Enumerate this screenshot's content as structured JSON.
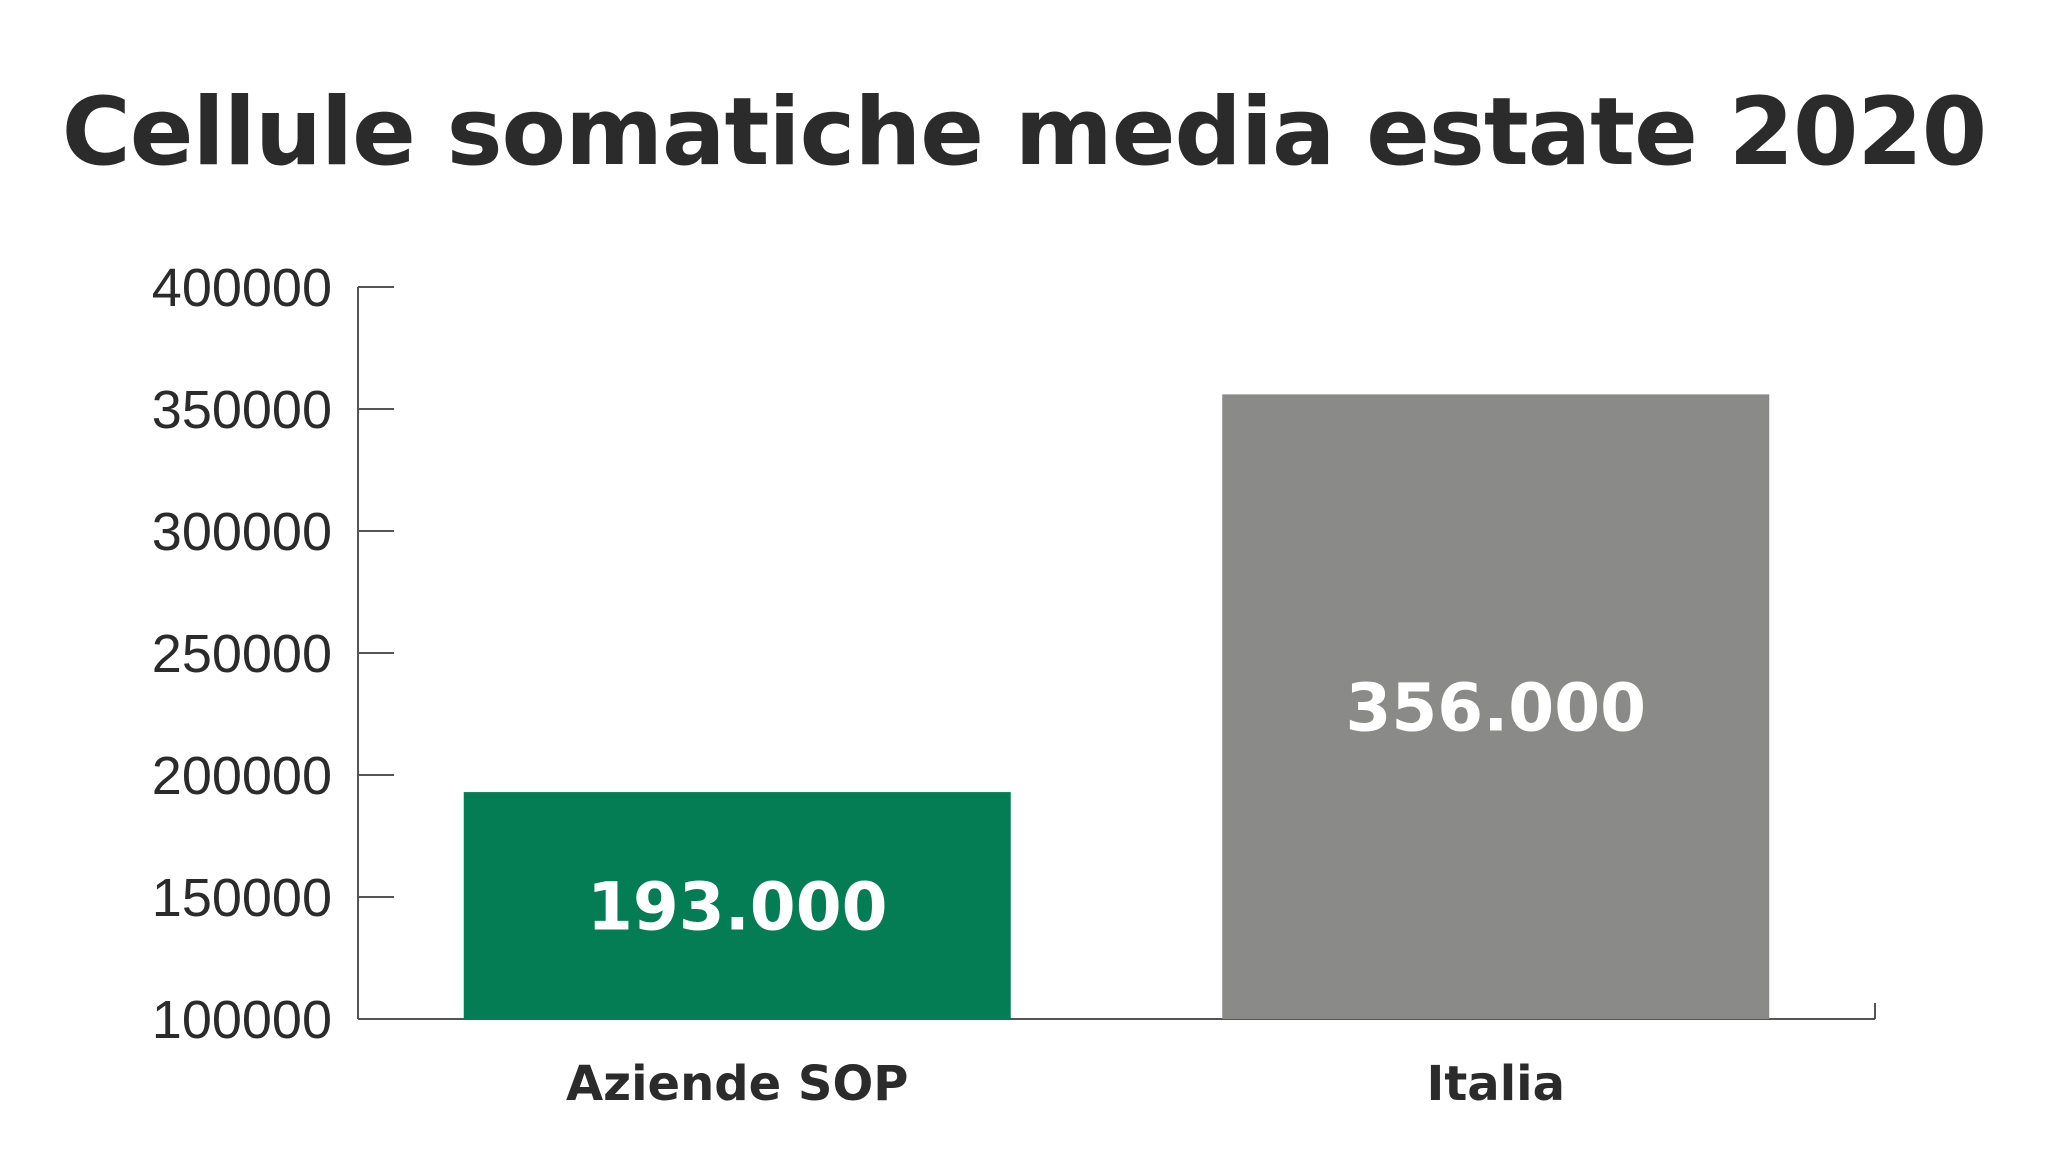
{
  "chart_data": {
    "type": "bar",
    "title": "Cellule somatiche media estate 2020",
    "xlabel": "",
    "ylabel": "",
    "categories": [
      "Aziende SOP",
      "Italia"
    ],
    "values": [
      193000,
      356000
    ],
    "data_labels": [
      "193.000",
      "356.000"
    ],
    "colors": [
      "#047d55",
      "#8a8a88"
    ],
    "ylim": [
      100000,
      400000
    ],
    "yticks": [
      100000,
      150000,
      200000,
      250000,
      300000,
      350000,
      400000
    ],
    "ytick_labels": [
      "100000",
      "150000",
      "200000",
      "250000",
      "300000",
      "350000",
      "400000"
    ],
    "grid": false,
    "legend": "none"
  }
}
